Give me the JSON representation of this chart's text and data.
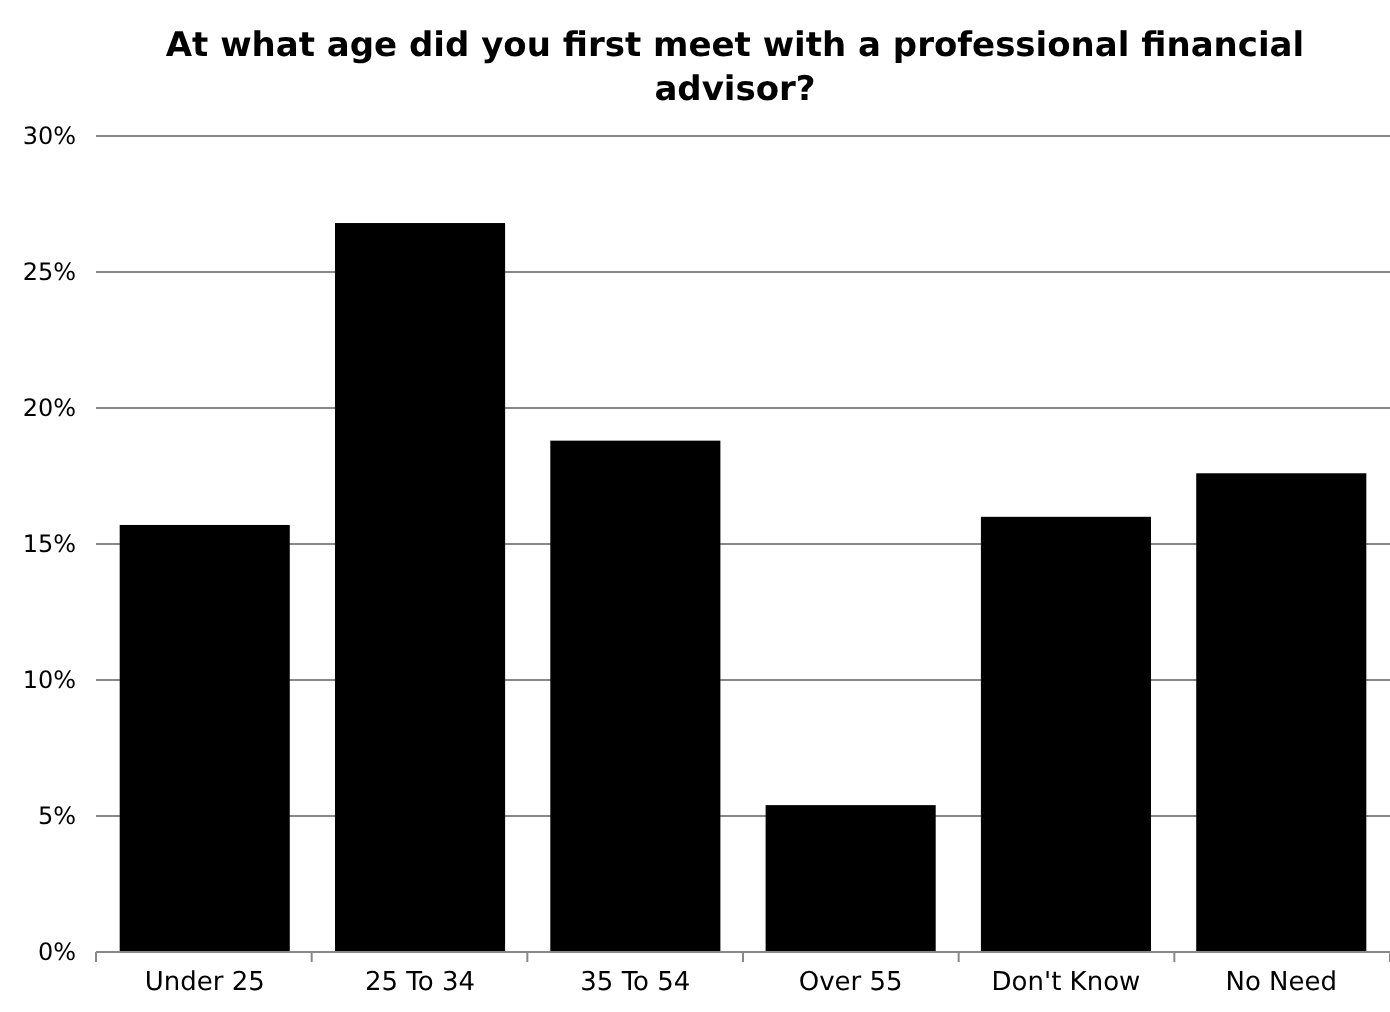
{
  "chart_data": {
    "type": "bar",
    "title": "At what age did you first meet with a professional financial advisor?",
    "categories": [
      "Under 25",
      "25 To 34",
      "35 To 54",
      "Over 55",
      "Don't Know",
      "No Need"
    ],
    "values": [
      15.7,
      26.8,
      18.8,
      5.4,
      16.0,
      17.6
    ],
    "color": "#000000",
    "ylim": [
      0,
      30
    ],
    "yticks": [
      {
        "value": 0,
        "label": "0%"
      },
      {
        "value": 5,
        "label": "5%"
      },
      {
        "value": 10,
        "label": "10%"
      },
      {
        "value": 15,
        "label": "15%"
      },
      {
        "value": 20,
        "label": "20%"
      },
      {
        "value": 25,
        "label": "25%"
      },
      {
        "value": 30,
        "label": "30%"
      }
    ],
    "grid": "y"
  }
}
